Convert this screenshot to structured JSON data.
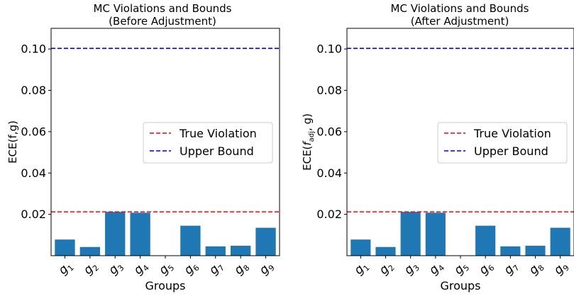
{
  "chart_data": [
    {
      "type": "bar",
      "title": "MC Violations and Bounds",
      "subtitle": "(Before Adjustment)",
      "xlabel": "Groups",
      "ylabel": "ECE(f,g)",
      "ylabel_parts": [],
      "categories": [
        "g1",
        "g2",
        "g3",
        "g4",
        "g5",
        "g6",
        "g7",
        "g8",
        "g9"
      ],
      "category_labels": [
        {
          "base": "g",
          "sub": "1"
        },
        {
          "base": "g",
          "sub": "2"
        },
        {
          "base": "g",
          "sub": "3"
        },
        {
          "base": "g",
          "sub": "4"
        },
        {
          "base": "g",
          "sub": "5"
        },
        {
          "base": "g",
          "sub": "6"
        },
        {
          "base": "g",
          "sub": "7"
        },
        {
          "base": "g",
          "sub": "8"
        },
        {
          "base": "g",
          "sub": "9"
        }
      ],
      "values": [
        0.0078,
        0.0042,
        0.0212,
        0.0208,
        0.0,
        0.0145,
        0.0045,
        0.0048,
        0.0135
      ],
      "bar_color": "#1f77b4",
      "ylim": [
        0.0,
        0.11
      ],
      "yticks": [
        "0.02",
        "0.04",
        "0.06",
        "0.08",
        "0.10"
      ],
      "hlines": [
        {
          "name": "True Violation",
          "y": 0.0212,
          "color": "#ff0000"
        },
        {
          "name": "Upper Bound",
          "y": 0.1003,
          "color": "#0000cc"
        }
      ],
      "legend_position": "center-right",
      "grid": false
    },
    {
      "type": "bar",
      "title": "MC Violations and Bounds",
      "subtitle": "(After Adjustment)",
      "xlabel": "Groups",
      "ylabel": "",
      "ylabel_parts": [
        "ECE(",
        "f",
        "adj",
        ", g)"
      ],
      "categories": [
        "g1",
        "g2",
        "g3",
        "g4",
        "g5",
        "g6",
        "g7",
        "g8",
        "g9"
      ],
      "category_labels": [
        {
          "base": "g",
          "sub": "1"
        },
        {
          "base": "g",
          "sub": "2"
        },
        {
          "base": "g",
          "sub": "3"
        },
        {
          "base": "g",
          "sub": "4"
        },
        {
          "base": "g",
          "sub": "5"
        },
        {
          "base": "g",
          "sub": "6"
        },
        {
          "base": "g",
          "sub": "7"
        },
        {
          "base": "g",
          "sub": "8"
        },
        {
          "base": "g",
          "sub": "9"
        }
      ],
      "values": [
        0.0078,
        0.0042,
        0.0212,
        0.0208,
        0.0,
        0.0145,
        0.0045,
        0.0048,
        0.0135
      ],
      "bar_color": "#1f77b4",
      "ylim": [
        0.0,
        0.11
      ],
      "yticks": [
        "0.02",
        "0.04",
        "0.06",
        "0.08",
        "0.10"
      ],
      "hlines": [
        {
          "name": "True Violation",
          "y": 0.0212,
          "color": "#ff0000"
        },
        {
          "name": "Upper Bound",
          "y": 0.1003,
          "color": "#0000cc"
        }
      ],
      "legend_position": "center-right",
      "grid": false
    }
  ]
}
